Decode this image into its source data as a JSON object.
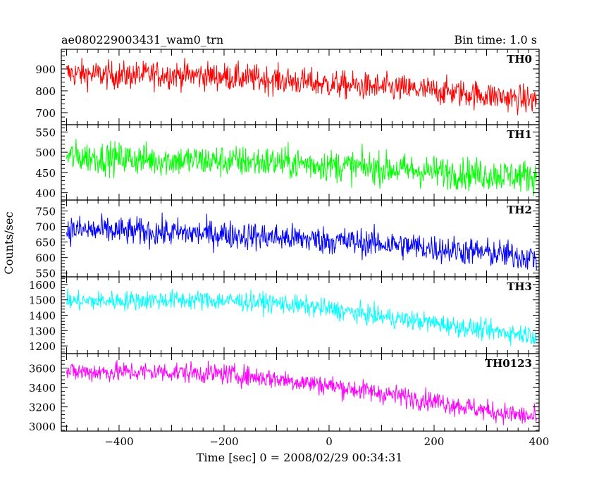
{
  "header": {
    "left_title": "ae080229003431_wam0_trn",
    "right_title": "Bin time: 1.0 s"
  },
  "axes": {
    "ylabel": "Counts/sec",
    "xlabel": "Time [sec] 0 = 2008/02/29 00:34:31",
    "xlim": [
      -510,
      400
    ],
    "x_ticks": [
      -400,
      -200,
      0,
      200,
      400
    ],
    "x_tick_labels": [
      "−400",
      "−200",
      "0",
      "200",
      "400"
    ]
  },
  "chart_data": [
    {
      "type": "line",
      "name": "TH0",
      "color": "#ff0000",
      "ylim": [
        645,
        990
      ],
      "y_ticks": [
        700,
        800,
        900
      ],
      "y_tick_labels": [
        "700",
        "800",
        "900"
      ],
      "x": [
        -500,
        -400,
        -300,
        -200,
        -100,
        0,
        100,
        200,
        300,
        350,
        395
      ],
      "values": [
        880,
        870,
        875,
        865,
        850,
        830,
        815,
        800,
        780,
        765,
        755
      ],
      "noise": 45
    },
    {
      "type": "line",
      "name": "TH1",
      "color": "#00ff00",
      "ylim": [
        382,
        568
      ],
      "y_ticks": [
        400,
        450,
        500,
        550
      ],
      "y_tick_labels": [
        "400",
        "450",
        "500",
        "550"
      ],
      "x": [
        -500,
        -400,
        -300,
        -200,
        -100,
        0,
        100,
        200,
        300,
        395
      ],
      "values": [
        490,
        485,
        480,
        478,
        475,
        468,
        460,
        452,
        445,
        440
      ],
      "noise": 28
    },
    {
      "type": "line",
      "name": "TH2",
      "color": "#0000ff",
      "ylim": [
        538,
        785
      ],
      "y_ticks": [
        550,
        600,
        650,
        700,
        750
      ],
      "y_tick_labels": [
        "550",
        "600",
        "650",
        "700",
        "750"
      ],
      "x": [
        -500,
        -400,
        -300,
        -200,
        -100,
        0,
        100,
        200,
        300,
        395
      ],
      "values": [
        690,
        685,
        680,
        675,
        665,
        655,
        645,
        630,
        615,
        600
      ],
      "noise": 32
    },
    {
      "type": "line",
      "name": "TH3",
      "color": "#00ffff",
      "ylim": [
        1150,
        1650
      ],
      "y_ticks": [
        1200,
        1300,
        1400,
        1500,
        1600
      ],
      "y_tick_labels": [
        "1200",
        "1300",
        "1400",
        "1500",
        "1600"
      ],
      "x": [
        -500,
        -400,
        -300,
        -200,
        -100,
        0,
        100,
        200,
        300,
        395
      ],
      "values": [
        1490,
        1495,
        1500,
        1495,
        1480,
        1440,
        1390,
        1350,
        1300,
        1270
      ],
      "noise": 45
    },
    {
      "type": "line",
      "name": "TH0123",
      "color": "#ff00ff",
      "ylim": [
        2950,
        3750
      ],
      "y_ticks": [
        3000,
        3200,
        3400,
        3600
      ],
      "y_tick_labels": [
        "3000",
        "3200",
        "3400",
        "3600"
      ],
      "x": [
        -500,
        -400,
        -300,
        -200,
        -100,
        0,
        100,
        200,
        300,
        395
      ],
      "values": [
        3560,
        3560,
        3560,
        3540,
        3490,
        3420,
        3340,
        3260,
        3160,
        3090
      ],
      "noise": 75
    }
  ]
}
